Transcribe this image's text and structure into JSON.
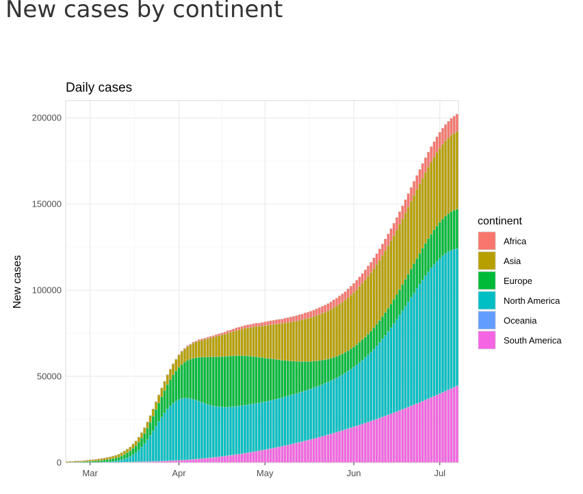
{
  "page": {
    "title": "New cases by continent"
  },
  "chart_data": {
    "type": "bar",
    "stacked": true,
    "title": "Daily cases",
    "xlabel": "",
    "ylabel": "New cases",
    "ylim": [
      0,
      210000
    ],
    "yticks": [
      0,
      50000,
      100000,
      150000,
      200000
    ],
    "ytick_labels": [
      "0",
      "50000",
      "100000",
      "150000",
      "200000"
    ],
    "xtick_labels": [
      "Mar",
      "Apr",
      "May",
      "Jun",
      "Jul"
    ],
    "xticks_day_index": [
      8,
      39,
      69,
      100,
      130
    ],
    "start_date": "2020-02-22",
    "grid": true,
    "legend": {
      "title": "continent",
      "position": "right"
    },
    "series": [
      {
        "name": "Africa",
        "color": "#F8766D",
        "values": [
          42,
          65,
          39,
          72,
          32,
          35,
          35,
          54,
          79,
          34,
          67,
          50,
          77,
          45,
          54,
          93,
          71,
          61,
          73,
          78,
          88,
          92,
          55,
          72,
          76,
          97,
          53,
          71,
          91,
          85,
          79,
          111,
          114,
          173,
          205,
          275,
          242,
          266,
          280,
          363,
          437,
          414,
          545,
          484,
          625,
          567,
          697,
          729,
          744,
          836,
          886,
          894,
          1128,
          1076,
          1141,
          1292,
          1380,
          1293,
          1349,
          1548,
          1588,
          1556,
          1723,
          1728,
          1820,
          1887,
          1978,
          1867,
          1978,
          2159,
          2283,
          2347,
          2355,
          2493,
          2564,
          2573,
          2817,
          2812,
          2964,
          2964,
          3162,
          3277,
          3294,
          3524,
          3561,
          3653,
          3692,
          3897,
          4012,
          4049,
          4162,
          4207,
          4298,
          4557,
          4636,
          4776,
          4836,
          4852,
          5118,
          5215,
          5355,
          5449,
          5561,
          5621,
          5848,
          6018,
          6074,
          6308,
          6284,
          6500,
          6569,
          6793,
          6913,
          7052,
          7096,
          7350,
          7361,
          7537,
          7653,
          7820,
          7925,
          8129,
          8127,
          8294,
          8449,
          8538,
          8716,
          8899,
          8902,
          9090,
          9214,
          9377,
          9447,
          9551,
          9744,
          9911,
          10076
        ]
      },
      {
        "name": "Asia",
        "color": "#B79F00",
        "values": [
          463,
          558,
          468,
          616,
          581,
          566,
          633,
          719,
          852,
          806,
          917,
          1004,
          1129,
          1153,
          1262,
          1409,
          1474,
          1551,
          1736,
          1899,
          2050,
          2188,
          2321,
          2558,
          2733,
          2954,
          3123,
          3389,
          3587,
          3918,
          4179,
          4417,
          4639,
          4968,
          5336,
          5618,
          5903,
          6273,
          6619,
          6987,
          7338,
          7624,
          8026,
          8347,
          8798,
          9092,
          9500,
          9836,
          10261,
          10594,
          11082,
          11403,
          11762,
          12140,
          12606,
          12945,
          13406,
          13801,
          14236,
          14660,
          14992,
          15476,
          15934,
          16312,
          16660,
          17155,
          17560,
          17949,
          18398,
          18850,
          19235,
          19669,
          20109,
          20578,
          20932,
          21342,
          21731,
          22208,
          22656,
          23048,
          23409,
          23861,
          24279,
          24727,
          25099,
          25451,
          25910,
          26341,
          26739,
          27178,
          27548,
          27974,
          28423,
          28842,
          29179,
          29562,
          29970,
          30373,
          30767,
          31211,
          31545,
          31925,
          32358,
          32789,
          33138,
          33568,
          33880,
          34299,
          34712,
          35101,
          35487,
          35860,
          36264,
          36632,
          37006,
          37375,
          37786,
          38182,
          38578,
          38913,
          39333,
          39692,
          40050,
          40439,
          40771,
          41125,
          41537,
          41858,
          42226,
          42592,
          42965,
          43306,
          43679,
          44014,
          44373,
          44687,
          45077
        ]
      },
      {
        "name": "Europe",
        "color": "#00BA38",
        "values": [
          86,
          153,
          175,
          266,
          314,
          343,
          467,
          537,
          578,
          726,
          775,
          943,
          985,
          1188,
          1302,
          1385,
          1564,
          1751,
          1888,
          2201,
          2533,
          2881,
          3209,
          3655,
          4046,
          4566,
          5254,
          5898,
          6696,
          7553,
          8624,
          9749,
          10782,
          11845,
          12896,
          14143,
          15354,
          16491,
          17549,
          18692,
          19823,
          20858,
          21870,
          22891,
          23811,
          24682,
          25500,
          26244,
          26832,
          27498,
          27977,
          28458,
          28786,
          29097,
          29285,
          29394,
          29574,
          29588,
          29515,
          29393,
          29196,
          28920,
          28629,
          28346,
          27890,
          27489,
          27010,
          26439,
          25928,
          25323,
          24790,
          24262,
          23641,
          22926,
          22349,
          21674,
          21065,
          20484,
          19775,
          19271,
          18641,
          18065,
          17502,
          16961,
          16394,
          15981,
          15461,
          15022,
          14593,
          14218,
          13769,
          13417,
          13077,
          12839,
          12524,
          12321,
          12105,
          11962,
          11849,
          11772,
          11735,
          11796,
          11804,
          11851,
          11925,
          12073,
          12199,
          12361,
          12556,
          12781,
          13052,
          13287,
          13533,
          13839,
          14170,
          14502,
          14900,
          15238,
          15684,
          16080,
          16524,
          16983,
          17430,
          17884,
          18376,
          18826,
          19282,
          19734,
          20175,
          20611,
          21026,
          21375,
          21770,
          22103,
          22404,
          22670,
          22901
        ]
      },
      {
        "name": "North America",
        "color": "#00BFC4",
        "values": [
          16,
          14,
          22,
          26,
          36,
          25,
          39,
          55,
          65,
          66,
          111,
          135,
          166,
          212,
          331,
          392,
          547,
          763,
          1046,
          1390,
          1852,
          2435,
          3157,
          4146,
          5256,
          6725,
          8449,
          10353,
          12609,
          15005,
          17532,
          20251,
          22921,
          25428,
          27840,
          29988,
          31742,
          33231,
          34407,
          35243,
          35737,
          35895,
          35764,
          35333,
          34775,
          34139,
          33437,
          32627,
          31858,
          31100,
          30476,
          29889,
          29362,
          29001,
          28622,
          28344,
          28175,
          28023,
          27938,
          27905,
          27848,
          27884,
          27854,
          27834,
          27819,
          27773,
          27824,
          27788,
          27850,
          27818,
          27884,
          27912,
          27974,
          28061,
          28146,
          28184,
          28313,
          28400,
          28485,
          28554,
          28690,
          28824,
          28897,
          29044,
          29164,
          29273,
          29468,
          29599,
          29810,
          30039,
          30261,
          30504,
          30818,
          31088,
          31466,
          31901,
          32353,
          32832,
          33389,
          33988,
          34646,
          35382,
          36198,
          37083,
          37955,
          38958,
          40010,
          41158,
          42412,
          43788,
          45237,
          46704,
          48318,
          49903,
          51645,
          53433,
          55288,
          57134,
          59079,
          61020,
          62973,
          64848,
          66706,
          68536,
          70323,
          72047,
          73596,
          75042,
          76386,
          77501,
          78457,
          79236,
          79777,
          80103,
          80185,
          80000,
          79559
        ]
      },
      {
        "name": "Oceania",
        "color": "#619CFF",
        "values": [
          0,
          1,
          0,
          2,
          1,
          2,
          5,
          7,
          5,
          12,
          14,
          21,
          24,
          32,
          41,
          56,
          72,
          86,
          108,
          131,
          156,
          179,
          205,
          226,
          256,
          272,
          290,
          303,
          306,
          311,
          301,
          290,
          267,
          242,
          215,
          185,
          154,
          127,
          103,
          82,
          68,
          56,
          47,
          38,
          35,
          29,
          28,
          24,
          24,
          20,
          19,
          18,
          18,
          16,
          15,
          15,
          13,
          14,
          12,
          12,
          11,
          11,
          11,
          10,
          10,
          9,
          10,
          11,
          10,
          10,
          11,
          11,
          11,
          11,
          12,
          13,
          13,
          13,
          14,
          15,
          15,
          16,
          16,
          18,
          18,
          18,
          19,
          20,
          20,
          21,
          22,
          22,
          23,
          24,
          24,
          25,
          26,
          27,
          27,
          28,
          29,
          30,
          31,
          31,
          33,
          33,
          34,
          35,
          36,
          37,
          38,
          38,
          39,
          40,
          41,
          41,
          43,
          43,
          44,
          45,
          46,
          46,
          47,
          48,
          49,
          50,
          50,
          51,
          52,
          52,
          53,
          54,
          55,
          56,
          56,
          57,
          57
        ]
      },
      {
        "name": "South America",
        "color": "#F564E3",
        "values": [
          0,
          1,
          1,
          1,
          2,
          3,
          4,
          7,
          7,
          10,
          13,
          17,
          21,
          27,
          33,
          42,
          51,
          63,
          75,
          90,
          108,
          129,
          151,
          176,
          206,
          238,
          275,
          316,
          361,
          413,
          469,
          531,
          598,
          670,
          748,
          832,
          920,
          1015,
          1116,
          1222,
          1334,
          1451,
          1575,
          1706,
          1843,
          1985,
          2134,
          2289,
          2450,
          2618,
          2794,
          2974,
          3163,
          3358,
          3560,
          3768,
          3983,
          4206,
          4437,
          4674,
          4919,
          5172,
          5431,
          5698,
          5972,
          6253,
          6542,
          6838,
          7141,
          7452,
          7770,
          8096,
          8428,
          8768,
          9115,
          9470,
          9832,
          10201,
          10578,
          10962,
          11353,
          11752,
          12157,
          12571,
          12992,
          13420,
          13855,
          14297,
          14746,
          15203,
          15668,
          16139,
          16617,
          17102,
          17594,
          18094,
          18601,
          19114,
          19635,
          20162,
          20697,
          21239,
          21787,
          22343,
          22905,
          23474,
          24050,
          24634,
          25224,
          25821,
          26424,
          27034,
          27651,
          28276,
          28907,
          29544,
          30189,
          30839,
          31497,
          32162,
          32833,
          33511,
          34195,
          34887,
          35584,
          36289,
          37000,
          37717,
          38442,
          39173,
          39909,
          40654,
          41403,
          42160,
          42923,
          43693,
          44469
        ]
      }
    ]
  }
}
